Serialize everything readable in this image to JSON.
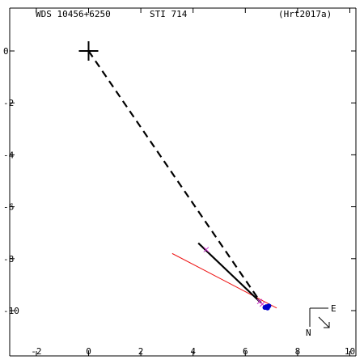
{
  "header": {
    "wds": "WDS 10456+6250",
    "discoverer": "STI 714",
    "reference": "(Hrt2017a)"
  },
  "compass": {
    "east": "E",
    "north": "N"
  },
  "chart_data": {
    "type": "scatter",
    "title": "",
    "xlabel": "",
    "ylabel": "",
    "xlim": [
      -2.5,
      10.3
    ],
    "ylim": [
      -11.6,
      1.6
    ],
    "x_ticks": [
      -2,
      0,
      2,
      4,
      6,
      8,
      10
    ],
    "y_ticks": [
      0,
      -2,
      -4,
      -6,
      -8,
      -10
    ],
    "grid": false,
    "primary": {
      "x": 0,
      "y": 0
    },
    "orbit_line": {
      "from": [
        4.2,
        -7.4
      ],
      "to": [
        6.6,
        -9.7
      ]
    },
    "connector": {
      "from": [
        0,
        0
      ],
      "to": [
        6.6,
        -9.7
      ]
    },
    "fit_line": {
      "from": [
        3.2,
        -7.8
      ],
      "to": [
        7.2,
        -9.9
      ]
    },
    "observations": [
      {
        "x": 4.5,
        "y": -7.65,
        "color": "#cc33cc",
        "marker": "x"
      },
      {
        "x": 6.55,
        "y": -9.65,
        "color": "#cc33cc",
        "marker": "x"
      },
      {
        "x": 6.65,
        "y": -9.75,
        "color": "#cc33cc",
        "marker": "x"
      },
      {
        "x": 6.8,
        "y": -9.85,
        "color": "#0000cc",
        "marker": "dot"
      },
      {
        "x": 6.85,
        "y": -9.9,
        "color": "#0000cc",
        "marker": "dot"
      },
      {
        "x": 6.75,
        "y": -9.88,
        "color": "#0000cc",
        "marker": "dot"
      },
      {
        "x": 6.9,
        "y": -9.82,
        "color": "#0000cc",
        "marker": "dot"
      }
    ],
    "colors": {
      "fit": "#ee1111",
      "axis": "#000000"
    }
  }
}
